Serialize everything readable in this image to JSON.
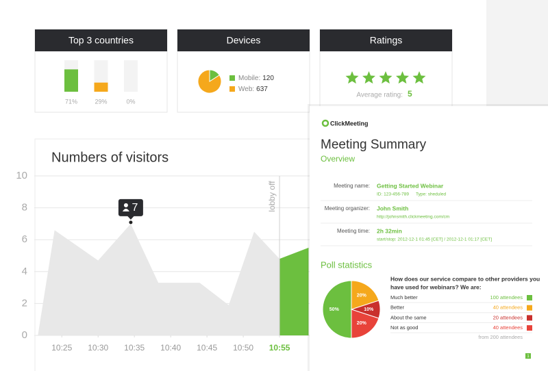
{
  "chart_data": [
    {
      "type": "bar",
      "title": "Top 3 countries",
      "categories": [
        null,
        null,
        null
      ],
      "values": [
        71,
        29,
        0
      ],
      "value_labels": [
        "71%",
        "29%",
        "0%"
      ],
      "colors": [
        "#6cbf3f",
        "#f5a81c",
        "#d9d9d9"
      ],
      "ylim": [
        0,
        100
      ]
    },
    {
      "type": "pie",
      "title": "Devices",
      "categories": [
        "Mobile:",
        "Web:"
      ],
      "values": [
        120,
        637
      ],
      "colors": [
        "#6cbf3f",
        "#f5a81c"
      ]
    },
    {
      "type": "area",
      "title": "Numbers of visitors",
      "xlim": [
        21.2,
        83.5
      ],
      "ylim": [
        0,
        10
      ],
      "yticks": [
        0,
        2,
        4,
        6,
        8,
        10
      ],
      "xticks": [
        {
          "value": 25,
          "label": "10:25"
        },
        {
          "value": 30,
          "label": "10:30"
        },
        {
          "value": 35,
          "label": "10:35"
        },
        {
          "value": 40,
          "label": "10:40"
        },
        {
          "value": 45,
          "label": "10:45"
        },
        {
          "value": 50,
          "label": "10:50"
        },
        {
          "value": 55,
          "label": "10:55"
        }
      ],
      "grid": true,
      "series": [
        {
          "color": "#e8e8e8",
          "x": [
            21.7,
            24,
            30,
            34.5,
            38.3,
            44,
            48,
            51.5,
            55
          ],
          "values": [
            0,
            6.6,
            4.7,
            7,
            3.3,
            3.3,
            1.9,
            6.5,
            4.8
          ],
          "value_labels": [
            null,
            null,
            null,
            "7",
            null,
            null,
            null,
            null,
            null
          ]
        },
        {
          "color": "#6cbf3f",
          "x": [
            55,
            59
          ],
          "values": [
            4.8,
            5.5
          ]
        }
      ],
      "annotations": [
        {
          "x": 55,
          "text": "lobby off"
        }
      ]
    },
    {
      "type": "pie",
      "title": "Poll statistics",
      "question": [
        "How does our service compare to other providers you",
        "have used for webinars? We are:"
      ],
      "categories": [
        "Much better",
        "Better",
        "About the same",
        "Not as good"
      ],
      "attendees": [
        "100 attendees",
        "40 attendees",
        "20 attendees",
        "40 attendees"
      ],
      "values": [
        50,
        20,
        10,
        20
      ],
      "value_labels": [
        "50%",
        "20%",
        "10%",
        "20%"
      ],
      "colors": [
        "#6cbf3f",
        "#f5a81c",
        "#c9302c",
        "#e8433a"
      ],
      "total": "from 200 attendees"
    }
  ],
  "ratings": {
    "title": "Ratings",
    "label": "Average rating:",
    "value": 5
  },
  "summary": {
    "logo": "ClickMeeting",
    "title": "Meeting Summary",
    "subtitle": "Overview",
    "fields": [
      {
        "label": "Meeting name:",
        "value": "Getting Started Webinar",
        "details": [
          "ID: 123-456-789",
          "Type: sheduled"
        ]
      },
      {
        "label": "Meeting organizer:",
        "value": "John Smith",
        "details": [
          "http://johnsmith.clickmeeting.com/cm"
        ]
      },
      {
        "label": "Meeting time:",
        "value": "2h 32min",
        "details": [
          "start/stop: 2012-12-1 01:45 [CET] / 2012-12-1 01:17 [CET]"
        ]
      }
    ],
    "page": "1"
  }
}
